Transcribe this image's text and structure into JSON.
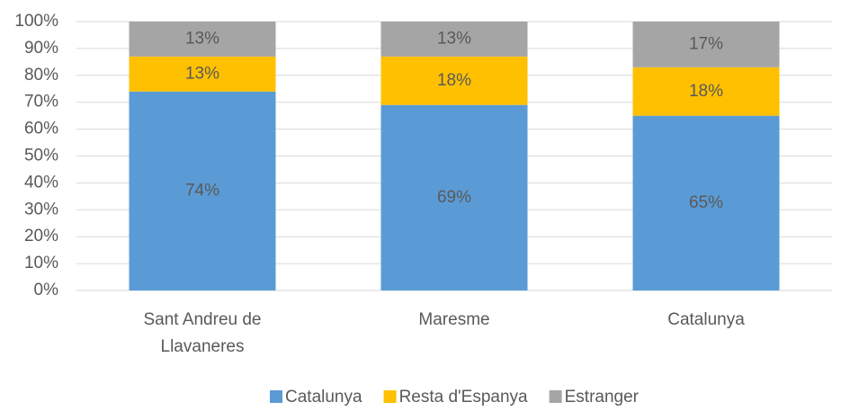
{
  "chart_data": {
    "type": "stacked_bar",
    "categories": [
      "Sant Andreu de Llavaneres",
      "Maresme",
      "Catalunya"
    ],
    "series": [
      {
        "name": "Catalunya",
        "color": "#5b9bd5",
        "values": [
          74,
          69,
          65
        ],
        "value_labels": [
          "74%",
          "69%",
          "65%"
        ]
      },
      {
        "name": "Resta d'Espanya",
        "color": "#ffc000",
        "values": [
          13,
          18,
          18
        ],
        "value_labels": [
          "13%",
          "18%",
          "18%"
        ]
      },
      {
        "name": "Estranger",
        "color": "#a5a5a5",
        "values": [
          13,
          13,
          17
        ],
        "value_labels": [
          "13%",
          "13%",
          "17%"
        ]
      }
    ],
    "ylim": [
      0,
      100
    ],
    "yticks": [
      {
        "value": 0,
        "label": "0%"
      },
      {
        "value": 10,
        "label": "10%"
      },
      {
        "value": 20,
        "label": "20%"
      },
      {
        "value": 30,
        "label": "30%"
      },
      {
        "value": 40,
        "label": "40%"
      },
      {
        "value": 50,
        "label": "50%"
      },
      {
        "value": 60,
        "label": "60%"
      },
      {
        "value": 70,
        "label": "70%"
      },
      {
        "value": 80,
        "label": "80%"
      },
      {
        "value": 90,
        "label": "90%"
      },
      {
        "value": 100,
        "label": "100%"
      }
    ],
    "grid": true,
    "legend": "bottom"
  }
}
